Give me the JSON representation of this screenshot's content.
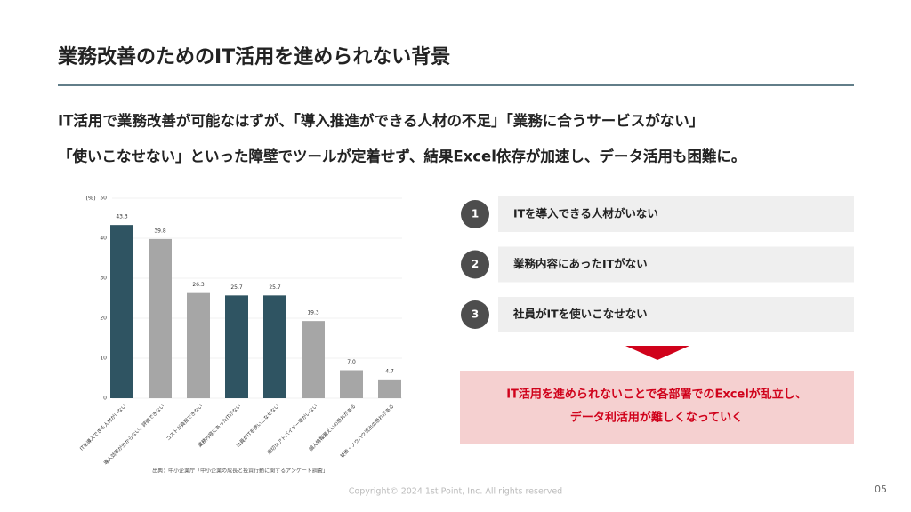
{
  "header": {
    "title": "業務改善のためのIT活用を進められない背景"
  },
  "lead": {
    "lines": [
      "IT活用で業務改善が可能なはずが、「導入推進ができる人材の不足」「業務に合うサービスがない」",
      "「使いこなせない」といった障壁でツールが定着せず、結果Excel依存が加速し、データ活用も困難に。"
    ]
  },
  "chart_data": {
    "type": "bar",
    "ylabel": "(%)",
    "categories": [
      "ITを導入できる人材がいない",
      "導入効果が分からない、評価できない",
      "コストが負担できない",
      "業務内容にあったITがない",
      "社員がITを使いこなせない",
      "適切なアドバイザー等がいない",
      "個人情報漏えいの恐れがある",
      "技術・ノウハウ流出の恐れがある"
    ],
    "values": [
      43.3,
      39.8,
      26.3,
      25.7,
      25.7,
      19.3,
      7.0,
      4.7
    ],
    "value_labels": [
      "43.3",
      "39.8",
      "26.3",
      "25.7",
      "25.7",
      "19.3",
      "7.0",
      "4.7"
    ],
    "colors": [
      "#2f5462",
      "#a6a6a6",
      "#a6a6a6",
      "#2f5462",
      "#2f5462",
      "#a6a6a6",
      "#a6a6a6",
      "#a6a6a6"
    ],
    "ylim": [
      0,
      50
    ],
    "yticks": [
      0,
      10,
      20,
      30,
      40,
      50
    ],
    "grid": true,
    "source": "出典：中小企業庁「中小企業の成長と投資行動に関するアンケート調査」"
  },
  "list": {
    "items": [
      {
        "number": "1",
        "text": "ITを導入できる人材がいない"
      },
      {
        "number": "2",
        "text": "業務内容にあったITがない"
      },
      {
        "number": "3",
        "text": "社員がITを使いこなせない"
      }
    ]
  },
  "conclusion": {
    "lines": [
      "IT活用を進められないことで各部署でのExcelが乱立し、",
      "データ利活用が難しくなっていく"
    ]
  },
  "footer": {
    "copyright": "Copyright© 2024 1st Point, Inc. All rights reserved",
    "page": "05"
  }
}
